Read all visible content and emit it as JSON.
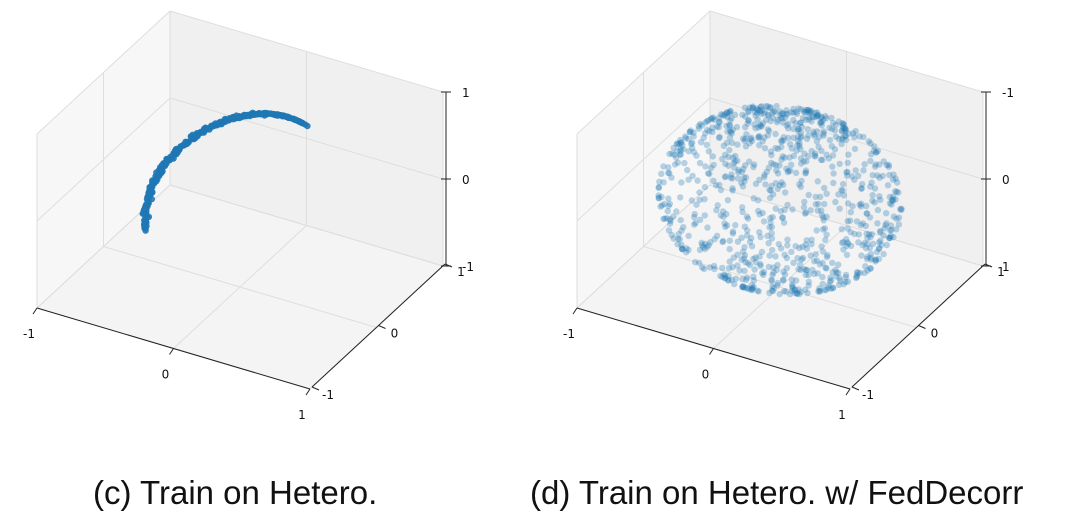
{
  "captions": {
    "c": "(c) Train on Hetero.",
    "d": "(d) Train on Hetero. w/ FedDecorr"
  },
  "colors": {
    "point": "#1f77b4",
    "pane_back": "#f0f0f0",
    "pane_side": "#f7f7f7",
    "pane_floor": "#f4f4f4",
    "grid": "#dedede",
    "axis": "#222222"
  },
  "chart_data": [
    {
      "type": "scatter",
      "title": "(c) Train on Hetero.",
      "projection": "3d",
      "xlim": [
        -1,
        1
      ],
      "ylim": [
        -1,
        1
      ],
      "zlim": [
        -1,
        1
      ],
      "x_ticks": [
        "-1",
        "0",
        "1"
      ],
      "y_ticks": [
        "-1",
        "0",
        "1"
      ],
      "z_ticks": [
        "-1",
        "0",
        "1"
      ],
      "grid": true,
      "marker_alpha": 0.9,
      "description_of_distribution": "points lie on a thin arc of the unit sphere",
      "series": [
        {
          "arc": {
            "start": [
              0.35,
              0.95,
              0.95
            ],
            "end": [
              -0.95,
              -0.25,
              -0.75
            ],
            "n_points": 320
          }
        }
      ]
    },
    {
      "type": "scatter",
      "title": "(d) Train on Hetero. w/ FedDecorr",
      "projection": "3d",
      "xlim": [
        -1,
        1
      ],
      "ylim": [
        -1,
        1
      ],
      "zlim": [
        -1,
        1
      ],
      "x_ticks": [
        "-1",
        "0",
        "1"
      ],
      "y_ticks": [
        "-1",
        "0",
        "1"
      ],
      "z_ticks": [
        "-1",
        "0",
        "1"
      ],
      "grid": true,
      "marker_alpha": 0.3,
      "series": [
        {
          "sphere_surface": {
            "radius": 1.0,
            "n_points": 900,
            "clusters": [
              [
                0.0,
                0.0,
                0.95
              ],
              [
                0.1,
                0.2,
                -0.6
              ]
            ]
          }
        }
      ]
    }
  ]
}
